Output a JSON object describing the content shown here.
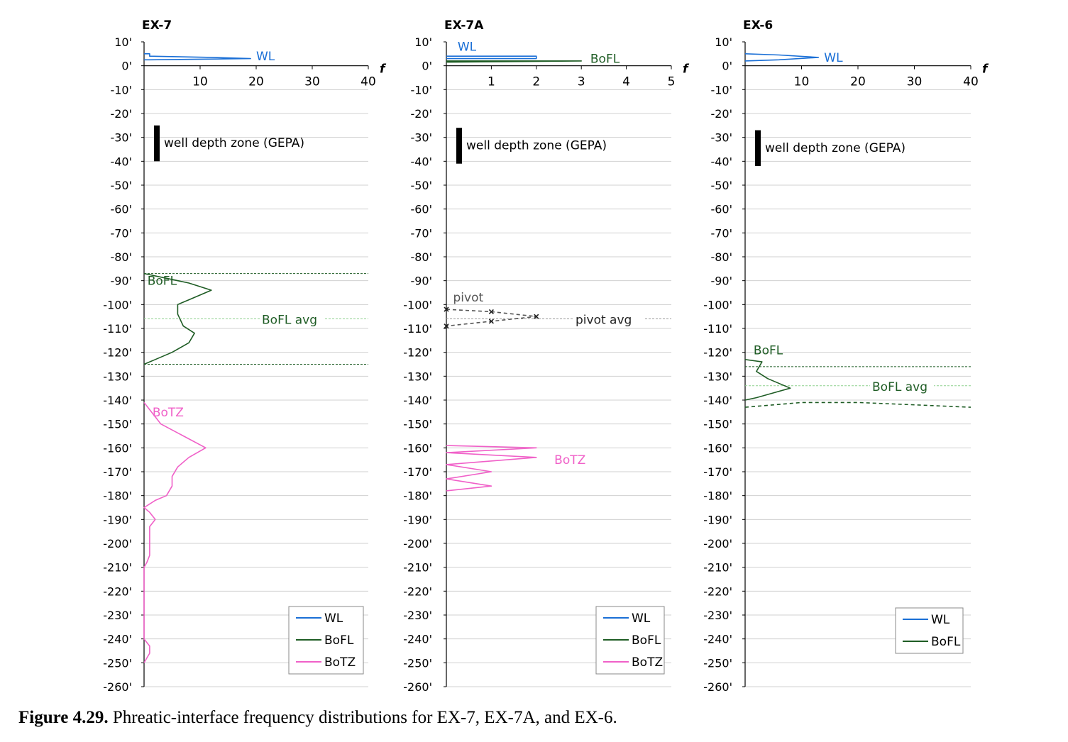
{
  "caption": {
    "label": "Figure 4.29.",
    "text": " Phreatic-interface frequency distributions for EX-7, EX-7A, and EX-6."
  },
  "colors": {
    "WL": "#1a6fd6",
    "BoFL": "#1e5c24",
    "BoTZ": "#f060c8",
    "pivot": "#555555",
    "grid": "#d0d0d0",
    "well_zone": "#000000"
  },
  "chart_data": [
    {
      "type": "line",
      "title": "EX-7",
      "x_label": "f",
      "x_ticks": [
        10,
        20,
        30,
        40
      ],
      "xlim": [
        0,
        40
      ],
      "y_ticks": [
        "10'",
        "0'",
        "-10'",
        "-20'",
        "-30'",
        "-40'",
        "-50'",
        "-60'",
        "-70'",
        "-80'",
        "-90'",
        "-100'",
        "-110'",
        "-120'",
        "-130'",
        "-140'",
        "-150'",
        "-160'",
        "-170'",
        "-180'",
        "-190'",
        "-200'",
        "-210'",
        "-220'",
        "-230'",
        "-240'",
        "-250'",
        "-260'"
      ],
      "y_values": [
        10,
        0,
        -10,
        -20,
        -30,
        -40,
        -50,
        -60,
        -70,
        -80,
        -90,
        -100,
        -110,
        -120,
        -130,
        -140,
        -150,
        -160,
        -170,
        -180,
        -190,
        -200,
        -210,
        -220,
        -230,
        -240,
        -250,
        -260
      ],
      "ylim": [
        -260,
        10
      ],
      "well_depth_zone": {
        "label": "well depth zone (GEPA)",
        "top": -25,
        "bottom": -40
      },
      "series": [
        {
          "name": "WL",
          "points": [
            [
              0,
              5
            ],
            [
              1,
              5
            ],
            [
              1,
              4
            ],
            [
              12,
              3.5
            ],
            [
              19,
              3
            ],
            [
              1,
              2.5
            ],
            [
              0,
              2.5
            ]
          ]
        },
        {
          "name": "BoFL",
          "points": [
            [
              0,
              -87
            ],
            [
              4,
              -89
            ],
            [
              8,
              -91
            ],
            [
              12,
              -94
            ],
            [
              8,
              -98
            ],
            [
              6,
              -100
            ],
            [
              6,
              -104
            ],
            [
              7,
              -109
            ],
            [
              9,
              -112
            ],
            [
              8,
              -116
            ],
            [
              5,
              -120
            ],
            [
              2,
              -123
            ],
            [
              0,
              -125
            ]
          ]
        },
        {
          "name": "BoTZ",
          "points": [
            [
              0,
              -141
            ],
            [
              1,
              -144
            ],
            [
              3,
              -150
            ],
            [
              7,
              -155
            ],
            [
              11,
              -160
            ],
            [
              8,
              -164
            ],
            [
              6,
              -168
            ],
            [
              5,
              -172
            ],
            [
              5,
              -176
            ],
            [
              4,
              -180
            ],
            [
              2,
              -182
            ],
            [
              0,
              -185
            ],
            [
              1,
              -187
            ],
            [
              2,
              -190
            ],
            [
              1,
              -193
            ],
            [
              1,
              -197
            ],
            [
              1,
              -201
            ],
            [
              1,
              -205
            ],
            [
              0.5,
              -208
            ],
            [
              0,
              -210
            ],
            [
              0,
              -240
            ],
            [
              1,
              -243
            ],
            [
              1,
              -246
            ],
            [
              0.5,
              -248
            ],
            [
              0,
              -250
            ]
          ]
        }
      ],
      "reference_lines": [
        {
          "y": -87,
          "label": ""
        },
        {
          "y": -106,
          "label": "BoFL avg"
        },
        {
          "y": -125,
          "label": ""
        }
      ],
      "annotations": [
        {
          "text": "WL",
          "x": 20,
          "y": 4,
          "series": "WL"
        },
        {
          "text": "BoFL",
          "x": 0.6,
          "y": -90,
          "series": "BoFL"
        },
        {
          "text": "BoTZ",
          "x": 1.5,
          "y": -145,
          "series": "BoTZ"
        }
      ],
      "legend": {
        "position": "bottom-right",
        "items": [
          "WL",
          "BoFL",
          "BoTZ"
        ]
      }
    },
    {
      "type": "line",
      "title": "EX-7A",
      "x_label": "f",
      "x_ticks": [
        1,
        2,
        3,
        4,
        5
      ],
      "xlim": [
        0,
        5
      ],
      "y_ticks": [
        "10'",
        "0'",
        "-10'",
        "-20'",
        "-30'",
        "-40'",
        "-50'",
        "-60'",
        "-70'",
        "-80'",
        "-90'",
        "-100'",
        "-110'",
        "-120'",
        "-130'",
        "-140'",
        "-150'",
        "-160'",
        "-170'",
        "-180'",
        "-190'",
        "-200'",
        "-210'",
        "-220'",
        "-230'",
        "-240'",
        "-250'",
        "-260'"
      ],
      "y_values": [
        10,
        0,
        -10,
        -20,
        -30,
        -40,
        -50,
        -60,
        -70,
        -80,
        -90,
        -100,
        -110,
        -120,
        -130,
        -140,
        -150,
        -160,
        -170,
        -180,
        -190,
        -200,
        -210,
        -220,
        -230,
        -240,
        -250,
        -260
      ],
      "ylim": [
        -260,
        10
      ],
      "well_depth_zone": {
        "label": "well depth zone (GEPA)",
        "top": -26,
        "bottom": -41
      },
      "series": [
        {
          "name": "WL",
          "points": [
            [
              0,
              4
            ],
            [
              2,
              4
            ],
            [
              2,
              3
            ],
            [
              0,
              3
            ]
          ]
        },
        {
          "name": "BoFL",
          "points": [
            [
              0,
              2
            ],
            [
              3,
              2
            ],
            [
              0,
              1.5
            ]
          ]
        },
        {
          "name": "pivot",
          "points": [
            [
              0,
              -102
            ],
            [
              1,
              -103
            ],
            [
              2,
              -105
            ],
            [
              1,
              -107
            ],
            [
              0,
              -109
            ]
          ]
        },
        {
          "name": "BoTZ",
          "points": [
            [
              0,
              -159
            ],
            [
              2,
              -160
            ],
            [
              0,
              -162
            ],
            [
              2,
              -164
            ],
            [
              0,
              -167
            ],
            [
              1,
              -170
            ],
            [
              0,
              -173
            ],
            [
              1,
              -176
            ],
            [
              0,
              -178
            ]
          ]
        }
      ],
      "reference_lines": [
        {
          "y": -106,
          "label": "pivot avg"
        }
      ],
      "annotations": [
        {
          "text": "WL",
          "x": 0.25,
          "y": 8,
          "series": "WL"
        },
        {
          "text": "BoFL",
          "x": 3.2,
          "y": 3,
          "series": "BoFL"
        },
        {
          "text": "pivot",
          "x": 0.15,
          "y": -97,
          "series": "pivot"
        },
        {
          "text": "BoTZ",
          "x": 2.4,
          "y": -165,
          "series": "BoTZ"
        }
      ],
      "legend": {
        "position": "bottom-right",
        "items": [
          "WL",
          "BoFL",
          "BoTZ"
        ]
      }
    },
    {
      "type": "line",
      "title": "EX-6",
      "x_label": "f",
      "x_ticks": [
        10,
        20,
        30,
        40
      ],
      "xlim": [
        0,
        40
      ],
      "y_ticks": [
        "10'",
        "0'",
        "-10'",
        "-20'",
        "-30'",
        "-40'",
        "-50'",
        "-60'",
        "-70'",
        "-80'",
        "-90'",
        "-100'",
        "-110'",
        "-120'",
        "-130'",
        "-140'",
        "-150'",
        "-160'",
        "-170'",
        "-180'",
        "-190'",
        "-200'",
        "-210'",
        "-220'",
        "-230'",
        "-240'",
        "-250'",
        "-260'"
      ],
      "y_values": [
        10,
        0,
        -10,
        -20,
        -30,
        -40,
        -50,
        -60,
        -70,
        -80,
        -90,
        -100,
        -110,
        -120,
        -130,
        -140,
        -150,
        -160,
        -170,
        -180,
        -190,
        -200,
        -210,
        -220,
        -230,
        -240,
        -250,
        -260
      ],
      "ylim": [
        -260,
        10
      ],
      "well_depth_zone": {
        "label": "well depth zone (GEPA)",
        "top": -27,
        "bottom": -42
      },
      "series": [
        {
          "name": "WL",
          "points": [
            [
              0,
              5
            ],
            [
              6,
              4.5
            ],
            [
              13,
              3.5
            ],
            [
              6,
              2.5
            ],
            [
              0,
              2
            ]
          ]
        },
        {
          "name": "BoFL",
          "points": [
            [
              0,
              -123
            ],
            [
              3,
              -124
            ],
            [
              2,
              -128
            ],
            [
              4,
              -131
            ],
            [
              8,
              -135
            ],
            [
              5,
              -137
            ],
            [
              2,
              -139
            ],
            [
              0,
              -140
            ]
          ]
        },
        {
          "name": "",
          "points": [
            [
              0,
              -143
            ],
            [
              10,
              -141
            ],
            [
              20,
              -141
            ],
            [
              30,
              -142
            ],
            [
              40,
              -143
            ]
          ]
        }
      ],
      "reference_lines": [
        {
          "y": -126,
          "label": ""
        },
        {
          "y": -134,
          "label": "BoFL avg"
        }
      ],
      "annotations": [
        {
          "text": "WL",
          "x": 14,
          "y": 3.5,
          "series": "WL"
        },
        {
          "text": "BoFL",
          "x": 1.5,
          "y": -119,
          "series": "BoFL"
        }
      ],
      "legend": {
        "position": "bottom-right",
        "items": [
          "WL",
          "BoFL"
        ]
      }
    }
  ]
}
